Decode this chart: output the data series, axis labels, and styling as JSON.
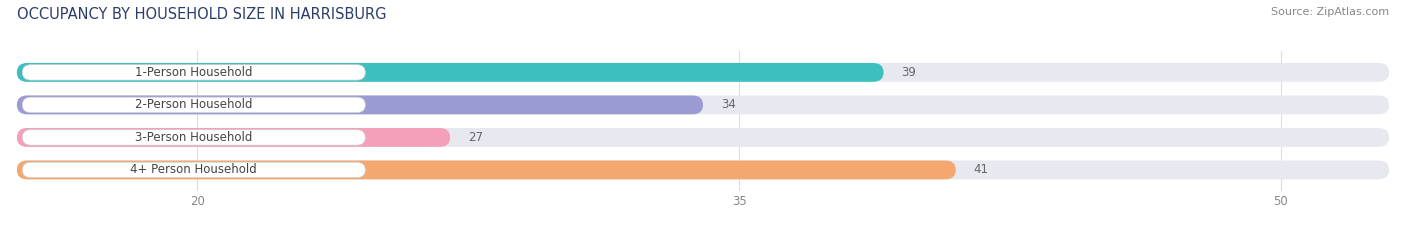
{
  "title": "OCCUPANCY BY HOUSEHOLD SIZE IN HARRISBURG",
  "source": "Source: ZipAtlas.com",
  "categories": [
    "1-Person Household",
    "2-Person Household",
    "3-Person Household",
    "4+ Person Household"
  ],
  "values": [
    39,
    34,
    27,
    41
  ],
  "bar_colors": [
    "#3DBFBF",
    "#9B9BD4",
    "#F4A0B8",
    "#F4A870"
  ],
  "bar_bg_color": "#E8E8F0",
  "label_bg_color": "#FFFFFF",
  "xlim": [
    15,
    53
  ],
  "data_min": 15,
  "xticks": [
    20,
    35,
    50
  ],
  "title_fontsize": 10.5,
  "label_fontsize": 8.5,
  "value_fontsize": 8.5,
  "source_fontsize": 8,
  "title_color": "#2C3E6B",
  "label_color": "#444444",
  "value_color": "#666666",
  "source_color": "#888888",
  "tick_color": "#888888",
  "background_color": "#FFFFFF",
  "grid_color": "#DDDDDD"
}
